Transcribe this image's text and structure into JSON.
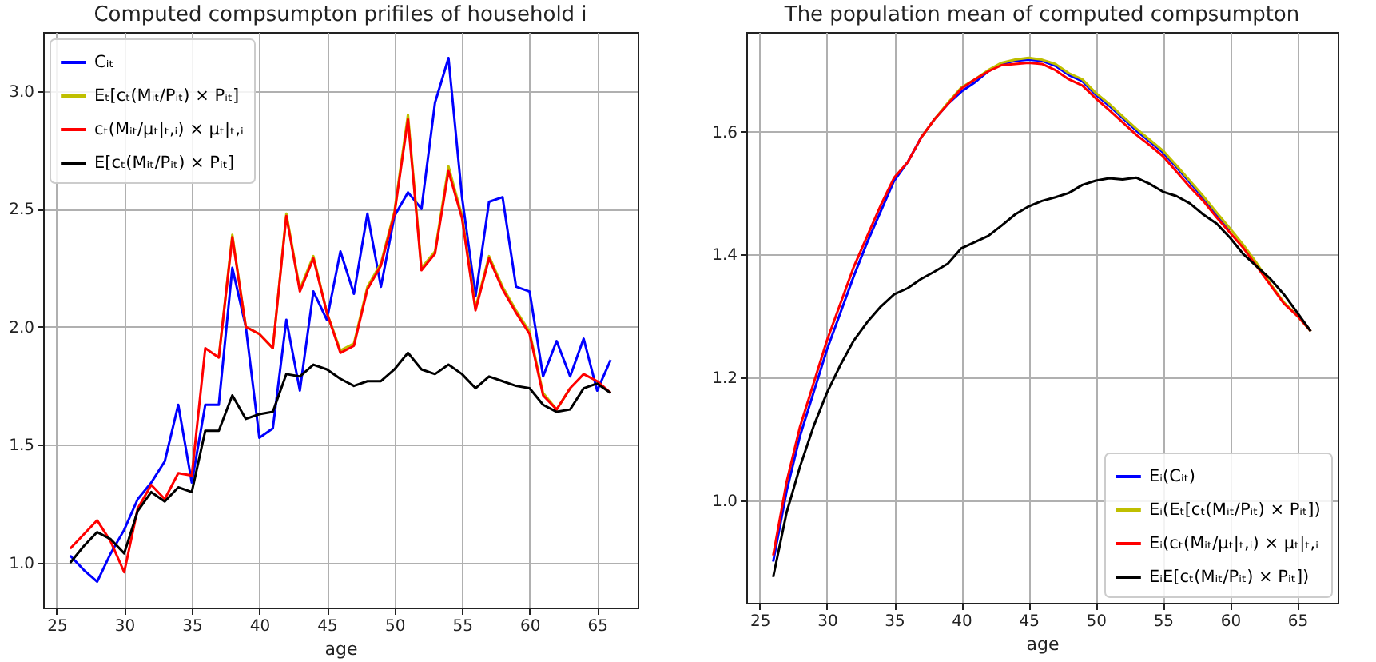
{
  "chart_data": [
    {
      "type": "line",
      "title": "Computed compsumpton prifiles of household i",
      "xlabel": "age",
      "x": [
        26,
        27,
        28,
        29,
        30,
        31,
        32,
        33,
        34,
        35,
        36,
        37,
        38,
        39,
        40,
        41,
        42,
        43,
        44,
        45,
        46,
        47,
        48,
        49,
        50,
        51,
        52,
        53,
        54,
        55,
        56,
        57,
        58,
        59,
        60,
        61,
        62,
        63,
        64,
        65,
        66
      ],
      "series": [
        {
          "name": "Cᵢₜ",
          "color": "#0000ff",
          "values": [
            1.03,
            0.97,
            0.92,
            1.04,
            1.14,
            1.27,
            1.34,
            1.43,
            1.67,
            1.34,
            1.67,
            1.67,
            2.25,
            2.0,
            1.53,
            1.57,
            2.03,
            1.73,
            2.15,
            2.03,
            2.32,
            2.14,
            2.48,
            2.17,
            2.47,
            2.57,
            2.5,
            2.95,
            3.14,
            2.55,
            2.13,
            2.53,
            2.55,
            2.17,
            2.15,
            1.79,
            1.94,
            1.79,
            1.95,
            1.73,
            1.86
          ]
        },
        {
          "name": "Eₜ[cₜ(Mᵢₜ/Pᵢₜ) × Pᵢₜ]",
          "color": "#bfbf00",
          "values": [
            null,
            null,
            null,
            null,
            null,
            null,
            null,
            null,
            null,
            null,
            null,
            1.87,
            2.39,
            2.0,
            1.97,
            1.91,
            2.48,
            2.16,
            2.3,
            2.06,
            1.9,
            1.93,
            2.17,
            2.27,
            2.49,
            2.9,
            2.25,
            2.32,
            2.68,
            2.47,
            2.08,
            2.3,
            2.17,
            2.07,
            1.98,
            1.72,
            1.65,
            1.74,
            null,
            null,
            null
          ]
        },
        {
          "name": "cₜ(Mᵢₜ/μₜ|ₜ,ᵢ) × μₜ|ₜ,ᵢ",
          "color": "#ff0000",
          "values": [
            1.06,
            1.12,
            1.18,
            1.09,
            0.96,
            1.23,
            1.33,
            1.27,
            1.38,
            1.37,
            1.91,
            1.87,
            2.38,
            2.0,
            1.97,
            1.91,
            2.47,
            2.15,
            2.29,
            2.06,
            1.89,
            1.92,
            2.16,
            2.26,
            2.48,
            2.88,
            2.24,
            2.31,
            2.66,
            2.46,
            2.07,
            2.29,
            2.16,
            2.06,
            1.97,
            1.71,
            1.65,
            1.74,
            1.8,
            1.77,
            1.72
          ]
        },
        {
          "name": "E[cₜ(Mᵢₜ/Pᵢₜ) × Pᵢₜ]",
          "color": "#000000",
          "values": [
            1.0,
            1.07,
            1.13,
            1.1,
            1.04,
            1.22,
            1.3,
            1.26,
            1.32,
            1.3,
            1.56,
            1.56,
            1.71,
            1.61,
            1.63,
            1.64,
            1.8,
            1.79,
            1.84,
            1.82,
            1.78,
            1.75,
            1.77,
            1.77,
            1.82,
            1.89,
            1.82,
            1.8,
            1.84,
            1.8,
            1.74,
            1.79,
            1.77,
            1.75,
            1.74,
            1.67,
            1.64,
            1.65,
            1.74,
            1.76,
            1.72
          ]
        }
      ],
      "xlim": [
        24,
        68
      ],
      "ylim": [
        0.81,
        3.25
      ],
      "xticks": [
        25,
        30,
        35,
        40,
        45,
        50,
        55,
        60,
        65
      ],
      "yticks": [
        {
          "value": 1,
          "label": "1.0"
        },
        {
          "value": 1.5,
          "label": "1.5"
        },
        {
          "value": 2,
          "label": "2.0"
        },
        {
          "value": 2.5,
          "label": "2.5"
        },
        {
          "value": 3,
          "label": "3.0"
        }
      ],
      "grid": true,
      "legend": "top left",
      "line_style": "solid"
    },
    {
      "type": "line",
      "title": "The population mean of computed compsumpton",
      "xlabel": "age",
      "x": [
        26,
        27,
        28,
        29,
        30,
        31,
        32,
        33,
        34,
        35,
        36,
        37,
        38,
        39,
        40,
        41,
        42,
        43,
        44,
        45,
        46,
        47,
        48,
        49,
        50,
        51,
        52,
        53,
        54,
        55,
        56,
        57,
        58,
        59,
        60,
        61,
        62,
        63,
        64,
        65,
        66
      ],
      "series": [
        {
          "name": "Eᵢ(Cᵢₜ)",
          "color": "#0000ff",
          "values": [
            0.9,
            1.015,
            1.105,
            1.175,
            1.245,
            1.305,
            1.365,
            1.42,
            1.47,
            1.52,
            1.55,
            1.59,
            1.62,
            1.645,
            1.665,
            1.68,
            1.698,
            1.71,
            1.715,
            1.717,
            1.715,
            1.707,
            1.692,
            1.682,
            1.66,
            1.642,
            1.622,
            1.602,
            1.584,
            1.566,
            1.542,
            1.517,
            1.492,
            1.465,
            1.44,
            null,
            null,
            null,
            null,
            null,
            null
          ]
        },
        {
          "name": "Eᵢ(Eₜ[cₜ(Mᵢₜ/Pᵢₜ) × Pᵢₜ])",
          "color": "#bfbf00",
          "values": [
            null,
            null,
            null,
            null,
            null,
            null,
            null,
            null,
            null,
            null,
            null,
            1.59,
            1.62,
            1.647,
            1.672,
            1.685,
            1.7,
            1.712,
            1.717,
            1.72,
            1.717,
            1.71,
            1.695,
            1.685,
            1.663,
            1.645,
            1.625,
            1.605,
            1.587,
            1.569,
            1.545,
            1.52,
            1.495,
            1.468,
            1.442,
            1.415,
            1.385,
            1.352,
            1.322,
            1.3,
            1.275
          ]
        },
        {
          "name": "Eᵢ(cₜ(Mᵢₜ/μₜ|ₜ,ᵢ) × μₜ|ₜ,ᵢ",
          "color": "#ff0000",
          "values": [
            0.91,
            1.03,
            1.12,
            1.19,
            1.26,
            1.32,
            1.38,
            1.43,
            1.48,
            1.525,
            1.55,
            1.59,
            1.62,
            1.645,
            1.67,
            1.685,
            1.698,
            1.708,
            1.71,
            1.712,
            1.71,
            1.7,
            1.685,
            1.675,
            1.654,
            1.635,
            1.615,
            1.595,
            1.578,
            1.56,
            1.535,
            1.51,
            1.487,
            1.46,
            1.435,
            1.41,
            1.38,
            1.35,
            1.32,
            1.3,
            1.275
          ]
        },
        {
          "name": "EᵢE[cₜ(Mᵢₜ/Pᵢₜ) × Pᵢₜ])",
          "color": "#000000",
          "values": [
            0.875,
            0.98,
            1.055,
            1.12,
            1.175,
            1.22,
            1.26,
            1.29,
            1.315,
            1.335,
            1.345,
            1.36,
            1.372,
            1.385,
            1.41,
            1.42,
            1.43,
            1.447,
            1.465,
            1.478,
            1.487,
            1.493,
            1.5,
            1.513,
            1.52,
            1.524,
            1.522,
            1.525,
            1.515,
            1.502,
            1.495,
            1.483,
            1.465,
            1.45,
            1.427,
            1.4,
            1.38,
            1.36,
            1.335,
            1.305,
            1.275
          ]
        }
      ],
      "xlim": [
        24,
        68
      ],
      "ylim": [
        0.833,
        1.762
      ],
      "xticks": [
        25,
        30,
        35,
        40,
        45,
        50,
        55,
        60,
        65
      ],
      "yticks": [
        {
          "value": 1,
          "label": "1.0"
        },
        {
          "value": 1.2,
          "label": "1.2"
        },
        {
          "value": 1.4,
          "label": "1.4"
        },
        {
          "value": 1.6,
          "label": "1.6"
        }
      ],
      "grid": true,
      "legend": "bottom right",
      "line_style": "solid"
    }
  ]
}
